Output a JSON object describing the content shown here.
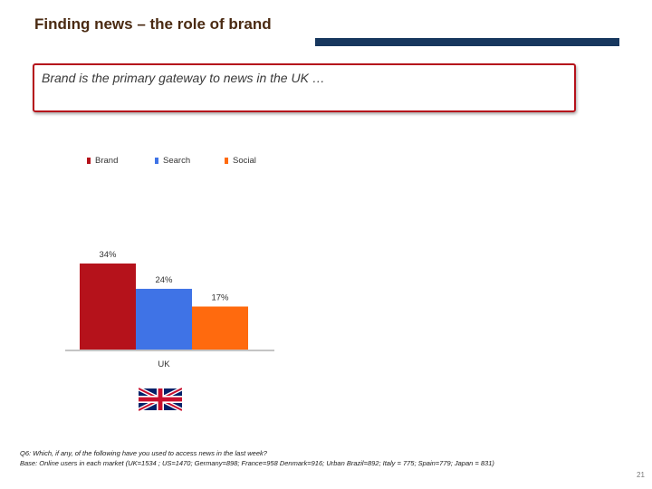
{
  "header": {
    "title": "Finding news – the role of brand",
    "subtitle": "Brand is the primary gateway to news  in the UK …"
  },
  "colors": {
    "brand": "#b5121b",
    "search": "#3f73e6",
    "social": "#ff6a0e",
    "title_bar": "#17375e"
  },
  "chart_data": {
    "type": "bar",
    "categories": [
      "UK"
    ],
    "series": [
      {
        "name": "Brand",
        "values": [
          34
        ],
        "label": "34%"
      },
      {
        "name": "Search",
        "values": [
          24
        ],
        "label": "24%"
      },
      {
        "name": "Social",
        "values": [
          17
        ],
        "label": "17%"
      }
    ],
    "ylim": [
      0,
      34
    ],
    "xlabel": "",
    "ylabel": "",
    "legend": [
      "Brand",
      "Search",
      "Social"
    ],
    "legend_position": "top-left",
    "grid": false
  },
  "flag": {
    "icon": "uk-flag-icon"
  },
  "footnote": {
    "question": "Q6: Which, if any, of the following have you used to access news in the last week?",
    "base": "Base: Online users in each market (UK=1534 ; US=1470; Germany=898; France=958  Denmark=916; Urban Brazil=892; Italy = 775; Spain=779; Japan = 831)"
  },
  "page_number": "21"
}
